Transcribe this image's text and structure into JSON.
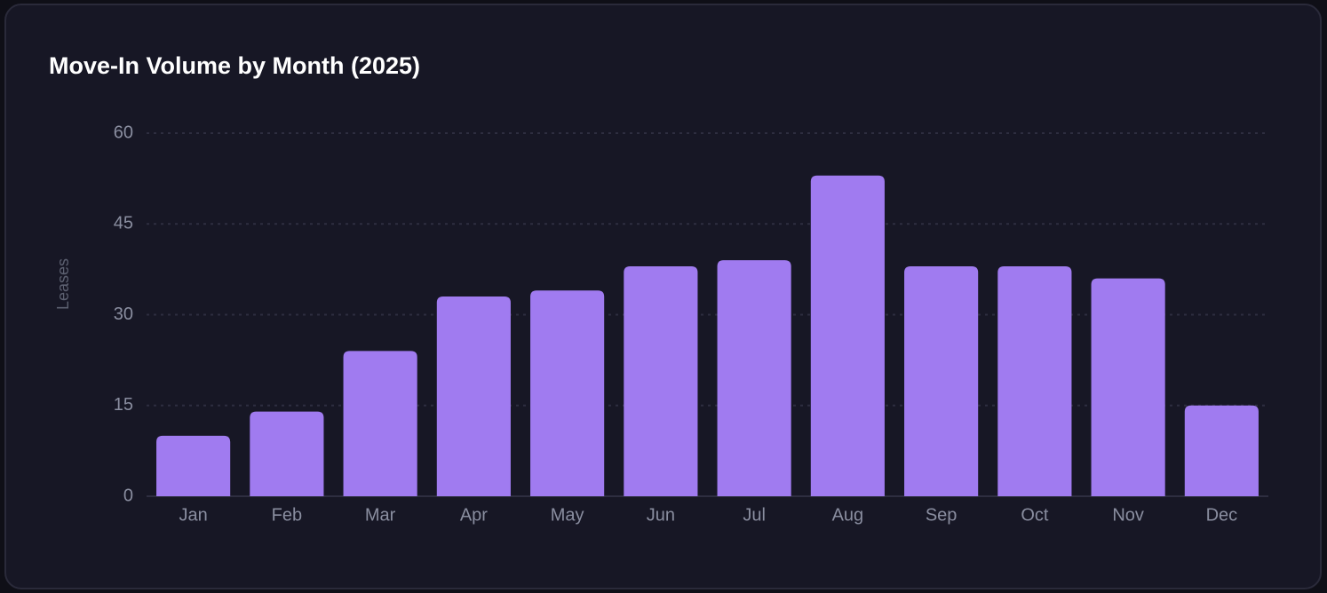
{
  "chart_data": {
    "type": "bar",
    "title": "Move-In Volume by Month (2025)",
    "y_label": "Leases",
    "categories": [
      "Jan",
      "Feb",
      "Mar",
      "Apr",
      "May",
      "Jun",
      "Jul",
      "Aug",
      "Sep",
      "Oct",
      "Nov",
      "Dec"
    ],
    "values": [
      10,
      14,
      24,
      33,
      34,
      38,
      39,
      53,
      38,
      38,
      36,
      15
    ],
    "color": "#a07bf0",
    "ylim": [
      0,
      60
    ],
    "yticks": [
      0,
      15,
      30,
      45,
      60
    ],
    "grid": true
  }
}
